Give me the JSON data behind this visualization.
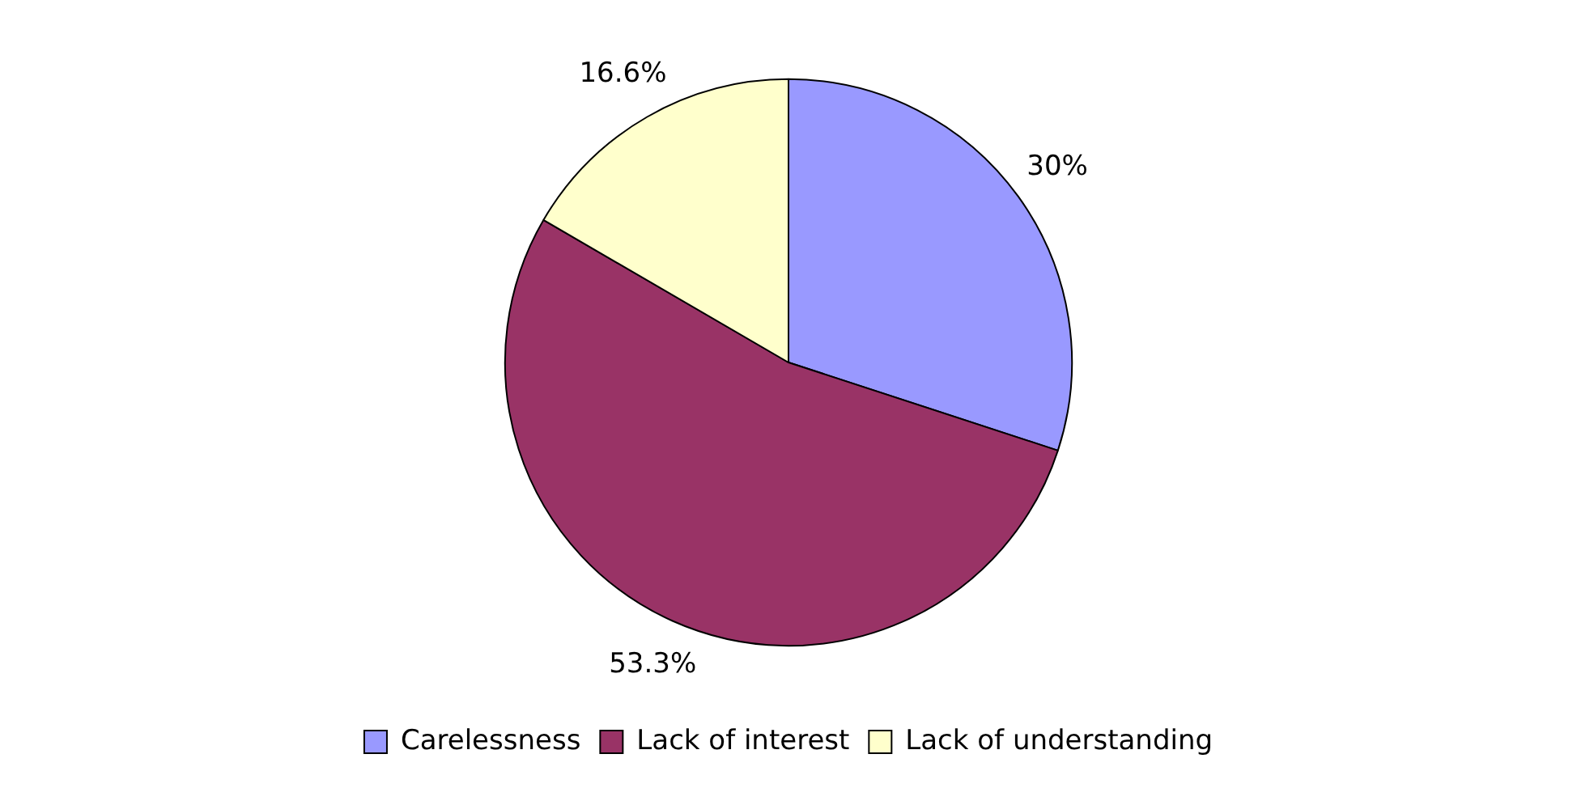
{
  "chart_data": {
    "type": "pie",
    "categories": [
      "Carelessness",
      "Lack of interest",
      "Lack of understanding"
    ],
    "values": [
      30,
      53.3,
      16.6
    ],
    "colors": [
      "#9999ff",
      "#993366",
      "#ffffcc"
    ],
    "value_labels": [
      "30%",
      "53.3%",
      "16.6%"
    ],
    "legend": "bottom"
  }
}
